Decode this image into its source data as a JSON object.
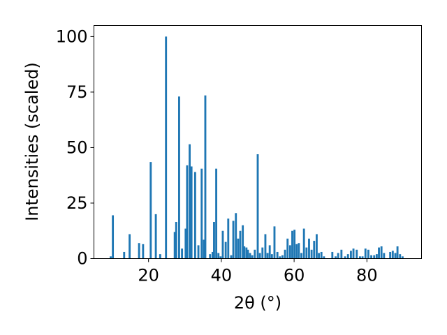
{
  "chart_data": {
    "type": "bar",
    "title": "",
    "xlabel": "2θ (°)",
    "ylabel": "Intensities (scaled)",
    "xlim": [
      5,
      95
    ],
    "ylim": [
      0,
      105
    ],
    "xticks": [
      20,
      40,
      60,
      80
    ],
    "yticks": [
      0,
      25,
      50,
      75,
      100
    ],
    "grid": false,
    "legend": "none",
    "bar_color": "#1f77b4",
    "bar_width": 0.55,
    "x": [
      9.6,
      10.2,
      13.3,
      14.8,
      17.4,
      18.5,
      20.6,
      22.0,
      23.2,
      24.8,
      27.2,
      27.6,
      28.4,
      29.2,
      30.2,
      30.6,
      31.3,
      31.8,
      32.8,
      33.7,
      34.6,
      35.2,
      35.6,
      36.9,
      37.6,
      38.0,
      38.6,
      39.2,
      39.8,
      40.4,
      41.2,
      41.9,
      42.7,
      43.3,
      44.0,
      44.6,
      45.2,
      45.9,
      46.3,
      46.9,
      47.3,
      47.9,
      48.5,
      49.2,
      50.0,
      50.6,
      51.3,
      52.1,
      52.7,
      53.3,
      53.9,
      54.6,
      55.4,
      56.1,
      56.8,
      57.5,
      58.2,
      58.9,
      59.5,
      60.1,
      60.7,
      61.3,
      62.0,
      62.7,
      63.4,
      64.1,
      64.8,
      65.5,
      66.2,
      66.8,
      67.5,
      68.2,
      70.5,
      71.4,
      72.1,
      73.0,
      74.0,
      74.8,
      75.6,
      76.3,
      77.2,
      78.1,
      78.8,
      79.6,
      80.4,
      81.2,
      82.0,
      82.7,
      83.3,
      84.0,
      84.7,
      86.4,
      87.1,
      87.8,
      88.4,
      89.1,
      89.8
    ],
    "values": [
      1,
      19.5,
      3,
      11,
      7,
      6.5,
      43.5,
      20,
      2,
      100,
      12,
      16.5,
      73,
      4.5,
      13.5,
      42,
      51.5,
      41.5,
      39,
      6,
      40.5,
      8.5,
      73.5,
      2,
      3,
      16.5,
      40.5,
      2.5,
      1,
      12.5,
      7.5,
      18,
      1.5,
      17,
      20.5,
      9,
      12.5,
      15,
      5.5,
      5,
      4,
      2.5,
      1.5,
      4,
      47,
      2.5,
      5,
      11,
      2.5,
      6,
      2,
      14.5,
      3,
      1,
      1.5,
      4,
      9,
      6,
      12.5,
      13,
      6.5,
      7,
      2.5,
      13.5,
      5,
      9,
      4,
      8,
      11,
      2.5,
      3,
      1,
      3,
      1,
      2.5,
      4,
      1,
      2,
      3.5,
      4.5,
      4,
      1,
      1,
      4.5,
      4,
      1.5,
      1.5,
      2,
      5,
      5.5,
      2.5,
      3,
      3.5,
      2.5,
      5.5,
      2,
      1
    ]
  }
}
